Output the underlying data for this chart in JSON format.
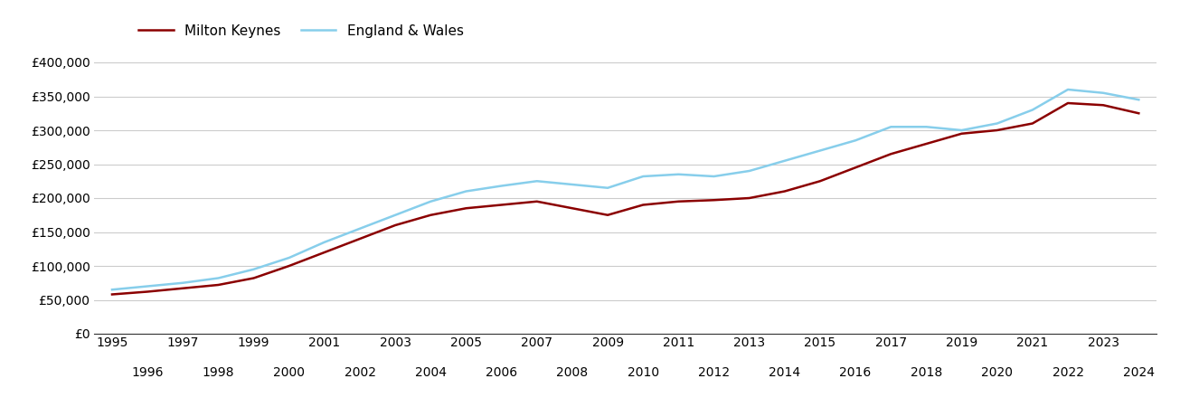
{
  "mk_label": "Milton Keynes",
  "ew_label": "England & Wales",
  "mk_color": "#8B0000",
  "ew_color": "#87CEEB",
  "years": [
    1995,
    1996,
    1997,
    1998,
    1999,
    2000,
    2001,
    2002,
    2003,
    2004,
    2005,
    2006,
    2007,
    2008,
    2009,
    2010,
    2011,
    2012,
    2013,
    2014,
    2015,
    2016,
    2017,
    2018,
    2019,
    2020,
    2021,
    2022,
    2023,
    2024
  ],
  "milton_keynes": [
    58000,
    62000,
    67000,
    72000,
    82000,
    100000,
    120000,
    140000,
    160000,
    175000,
    185000,
    190000,
    195000,
    185000,
    175000,
    190000,
    195000,
    197000,
    200000,
    210000,
    225000,
    245000,
    265000,
    280000,
    295000,
    300000,
    310000,
    340000,
    337000,
    325000
  ],
  "england_wales": [
    65000,
    70000,
    75000,
    82000,
    95000,
    112000,
    135000,
    155000,
    175000,
    195000,
    210000,
    218000,
    225000,
    220000,
    215000,
    232000,
    235000,
    232000,
    240000,
    255000,
    270000,
    285000,
    305000,
    305000,
    300000,
    310000,
    330000,
    360000,
    355000,
    345000
  ],
  "ylim": [
    0,
    420000
  ],
  "yticks": [
    0,
    50000,
    100000,
    150000,
    200000,
    250000,
    300000,
    350000,
    400000
  ],
  "background_color": "#ffffff",
  "grid_color": "#cccccc",
  "line_width": 1.8,
  "legend_fontsize": 11,
  "tick_fontsize": 10
}
